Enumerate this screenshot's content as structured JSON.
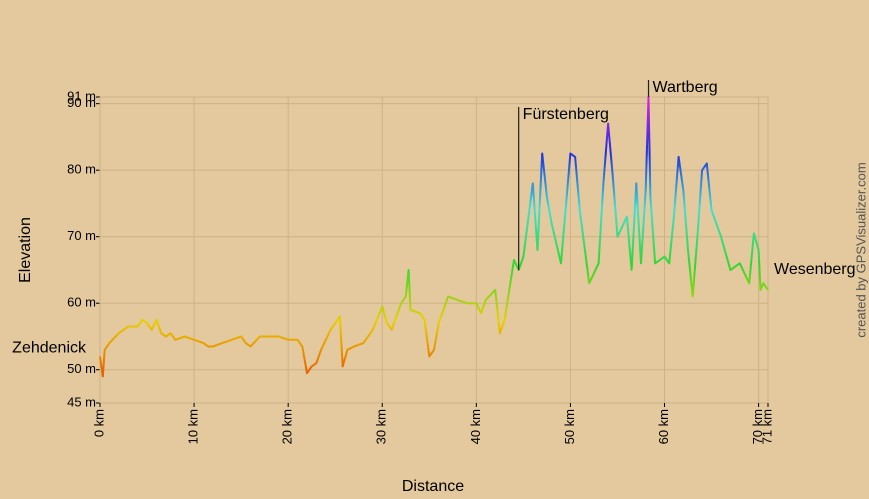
{
  "chart_data": {
    "type": "line",
    "xlabel": "Distance",
    "ylabel": "Elevation",
    "credit": "created by GPSVisualizer.com",
    "xlim": [
      0,
      71
    ],
    "ylim": [
      45,
      91
    ],
    "xticks": [
      {
        "value": 0,
        "label": "0 km"
      },
      {
        "value": 10,
        "label": "10 km"
      },
      {
        "value": 20,
        "label": "20 km"
      },
      {
        "value": 30,
        "label": "30 km"
      },
      {
        "value": 40,
        "label": "40 km"
      },
      {
        "value": 50,
        "label": "50 km"
      },
      {
        "value": 60,
        "label": "60 km"
      },
      {
        "value": 70,
        "label": "70 km"
      },
      {
        "value": 71,
        "label": "71 km"
      }
    ],
    "yticks": [
      {
        "value": 45,
        "label": "45 m"
      },
      {
        "value": 50,
        "label": "50 m"
      },
      {
        "value": 60,
        "label": "60 m"
      },
      {
        "value": 70,
        "label": "70 m"
      },
      {
        "value": 80,
        "label": "80 m"
      },
      {
        "value": 90,
        "label": "90 m"
      },
      {
        "value": 91,
        "label": "91 m"
      }
    ],
    "grid": true,
    "color_scale": [
      "#e85a00",
      "#e8d000",
      "#30d830",
      "#40e0d0",
      "#2030e0",
      "#e020e0"
    ],
    "x": [
      0,
      0.3,
      0.5,
      1,
      2,
      3,
      4,
      4.5,
      5,
      5.5,
      6,
      6.5,
      7,
      7.5,
      8,
      9,
      10,
      11,
      11.5,
      12,
      13,
      14,
      15,
      15.5,
      16,
      17,
      18,
      19,
      20,
      21,
      21.5,
      22,
      22.5,
      23,
      23.5,
      24.5,
      25.5,
      25.8,
      26.3,
      27,
      28,
      29,
      30,
      30.5,
      31,
      32,
      32.5,
      32.8,
      33,
      34,
      34.5,
      35,
      35.5,
      36,
      37,
      38,
      39,
      40,
      40.5,
      41,
      42,
      42.5,
      43,
      43.5,
      44,
      44.5,
      45,
      46,
      46.5,
      47,
      47.5,
      48,
      49,
      50,
      50.5,
      51,
      52,
      53,
      53.5,
      54,
      54.5,
      55,
      56,
      56.5,
      57,
      57.5,
      58,
      58.3,
      58.5,
      59,
      60,
      60.5,
      61,
      61.5,
      62,
      62.5,
      63,
      63.5,
      64,
      64.5,
      65,
      66,
      67,
      68,
      69,
      69.5,
      70,
      70.2,
      70.5,
      71
    ],
    "y": [
      52,
      49,
      53,
      54,
      55.5,
      56.5,
      56.5,
      57.5,
      57,
      56,
      57.5,
      55.5,
      55,
      55.5,
      54.5,
      55,
      54.5,
      54,
      53.5,
      53.5,
      54,
      54.5,
      55,
      54,
      53.5,
      55,
      55,
      55,
      54.5,
      54.5,
      53.5,
      49.5,
      50.5,
      51,
      53,
      56,
      58,
      50.5,
      53,
      53.5,
      54,
      56,
      59.5,
      57,
      56,
      60,
      61,
      65,
      59,
      58.5,
      57.5,
      52,
      53,
      57,
      61,
      60.5,
      60,
      60,
      58.5,
      60.5,
      62,
      55.5,
      57.5,
      62,
      66.5,
      65,
      67,
      78,
      68,
      82.5,
      76,
      72,
      66,
      82.5,
      82,
      74,
      63,
      66,
      78,
      87,
      79,
      70,
      73,
      65,
      78,
      66,
      77,
      91,
      76,
      66,
      67,
      66,
      73,
      82,
      77,
      68,
      61,
      70,
      80,
      81,
      74,
      70,
      65,
      66,
      63,
      70.5,
      68,
      62,
      63,
      62
    ],
    "waypoints": [
      {
        "name": "Zehdenick",
        "x": 0
      },
      {
        "name": "Fürstenberg",
        "x": 44.5
      },
      {
        "name": "Wartberg",
        "x": 58.3
      },
      {
        "name": "Wesenberg",
        "x": 71
      }
    ]
  }
}
